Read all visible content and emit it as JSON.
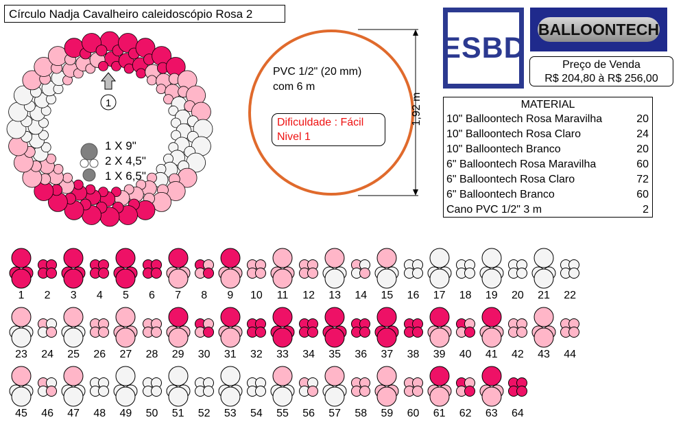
{
  "title": "Círculo Nadja Cavalheiro caleidoscópio Rosa 2",
  "logos": {
    "esbd": "ESBD",
    "balloontech": "BALLOONTECH"
  },
  "price": {
    "label": "Preço de Venda",
    "value": "R$ 204,80 à R$ 256,00"
  },
  "pvc_note": [
    "PVC 1/2\" (20 mm)",
    "com 6 m"
  ],
  "difficulty": [
    "Dificuldade : Fácil",
    "Nivel 1"
  ],
  "dimension": "1,92 m",
  "start_marker": "1",
  "cluster_sizes": [
    "1 X 9\"",
    "2 X 4,5\"",
    "1 X 6,5\""
  ],
  "material": {
    "title": "MATERIAL",
    "rows": [
      {
        "item": "10\" Balloontech Rosa Maravilha",
        "qty": "20"
      },
      {
        "item": "10\" Balloontech Rosa Claro",
        "qty": "24"
      },
      {
        "item": "10\" Balloontech Branco",
        "qty": "20"
      },
      {
        "item": "6\" Balloontech Rosa Maravilha",
        "qty": "60"
      },
      {
        "item": "6\" Balloontech Rosa Claro",
        "qty": "72"
      },
      {
        "item": "6\" Balloontech Branco",
        "qty": "60"
      },
      {
        "item": "Cano PVC 1/2\" 3 m",
        "qty": "2"
      }
    ]
  },
  "colors": {
    "M": "#ee1166",
    "P": "#ffb6c8",
    "W": "#f4f4f4",
    "frame": "#e06a2c",
    "esbd": "#2b3990"
  },
  "clusters": [
    {
      "n": "1",
      "type": "big",
      "top": "M",
      "bottom": "M"
    },
    {
      "n": "2",
      "type": "small",
      "c": [
        "M",
        "M",
        "M",
        "M"
      ]
    },
    {
      "n": "3",
      "type": "big",
      "top": "M",
      "bottom": "M"
    },
    {
      "n": "4",
      "type": "small",
      "c": [
        "M",
        "M",
        "M",
        "M"
      ]
    },
    {
      "n": "5",
      "type": "big",
      "top": "M",
      "bottom": "M"
    },
    {
      "n": "6",
      "type": "small",
      "c": [
        "M",
        "M",
        "M",
        "M"
      ]
    },
    {
      "n": "7",
      "type": "big",
      "top": "M",
      "bottom": "P"
    },
    {
      "n": "8",
      "type": "small",
      "c": [
        "M",
        "P",
        "P",
        "M"
      ]
    },
    {
      "n": "9",
      "type": "big",
      "top": "M",
      "bottom": "P"
    },
    {
      "n": "10",
      "type": "small",
      "c": [
        "P",
        "P",
        "P",
        "P"
      ]
    },
    {
      "n": "11",
      "type": "big",
      "top": "P",
      "bottom": "P"
    },
    {
      "n": "12",
      "type": "small",
      "c": [
        "P",
        "P",
        "P",
        "P"
      ]
    },
    {
      "n": "13",
      "type": "big",
      "top": "P",
      "bottom": "W"
    },
    {
      "n": "14",
      "type": "small",
      "c": [
        "P",
        "W",
        "W",
        "P"
      ]
    },
    {
      "n": "15",
      "type": "big",
      "top": "P",
      "bottom": "W"
    },
    {
      "n": "16",
      "type": "small",
      "c": [
        "W",
        "W",
        "W",
        "W"
      ]
    },
    {
      "n": "17",
      "type": "big",
      "top": "W",
      "bottom": "W"
    },
    {
      "n": "18",
      "type": "small",
      "c": [
        "W",
        "W",
        "W",
        "W"
      ]
    },
    {
      "n": "19",
      "type": "big",
      "top": "W",
      "bottom": "W"
    },
    {
      "n": "20",
      "type": "small",
      "c": [
        "W",
        "W",
        "W",
        "W"
      ]
    },
    {
      "n": "21",
      "type": "big",
      "top": "W",
      "bottom": "W"
    },
    {
      "n": "22",
      "type": "small",
      "c": [
        "W",
        "W",
        "W",
        "W"
      ]
    },
    {
      "n": "23",
      "type": "big",
      "top": "P",
      "bottom": "W"
    },
    {
      "n": "24",
      "type": "small",
      "c": [
        "P",
        "W",
        "W",
        "P"
      ]
    },
    {
      "n": "25",
      "type": "big",
      "top": "P",
      "bottom": "W"
    },
    {
      "n": "26",
      "type": "small",
      "c": [
        "P",
        "P",
        "P",
        "P"
      ]
    },
    {
      "n": "27",
      "type": "big",
      "top": "P",
      "bottom": "P"
    },
    {
      "n": "28",
      "type": "small",
      "c": [
        "P",
        "P",
        "P",
        "P"
      ]
    },
    {
      "n": "29",
      "type": "big",
      "top": "M",
      "bottom": "P"
    },
    {
      "n": "30",
      "type": "small",
      "c": [
        "M",
        "P",
        "P",
        "M"
      ]
    },
    {
      "n": "31",
      "type": "big",
      "top": "M",
      "bottom": "P"
    },
    {
      "n": "32",
      "type": "small",
      "c": [
        "M",
        "M",
        "M",
        "M"
      ]
    },
    {
      "n": "33",
      "type": "big",
      "top": "M",
      "bottom": "M"
    },
    {
      "n": "34",
      "type": "small",
      "c": [
        "M",
        "M",
        "M",
        "M"
      ]
    },
    {
      "n": "35",
      "type": "big",
      "top": "M",
      "bottom": "M"
    },
    {
      "n": "36",
      "type": "small",
      "c": [
        "M",
        "M",
        "M",
        "M"
      ]
    },
    {
      "n": "37",
      "type": "big",
      "top": "M",
      "bottom": "M"
    },
    {
      "n": "38",
      "type": "small",
      "c": [
        "M",
        "M",
        "M",
        "M"
      ]
    },
    {
      "n": "39",
      "type": "big",
      "top": "M",
      "bottom": "P"
    },
    {
      "n": "40",
      "type": "small",
      "c": [
        "M",
        "P",
        "P",
        "M"
      ]
    },
    {
      "n": "41",
      "type": "big",
      "top": "M",
      "bottom": "P"
    },
    {
      "n": "42",
      "type": "small",
      "c": [
        "P",
        "P",
        "P",
        "P"
      ]
    },
    {
      "n": "43",
      "type": "big",
      "top": "P",
      "bottom": "P"
    },
    {
      "n": "44",
      "type": "small",
      "c": [
        "P",
        "P",
        "P",
        "P"
      ]
    },
    {
      "n": "45",
      "type": "big",
      "top": "P",
      "bottom": "W"
    },
    {
      "n": "46",
      "type": "small",
      "c": [
        "P",
        "W",
        "W",
        "P"
      ]
    },
    {
      "n": "47",
      "type": "big",
      "top": "P",
      "bottom": "W"
    },
    {
      "n": "48",
      "type": "small",
      "c": [
        "W",
        "W",
        "W",
        "W"
      ]
    },
    {
      "n": "49",
      "type": "big",
      "top": "W",
      "bottom": "W"
    },
    {
      "n": "50",
      "type": "small",
      "c": [
        "W",
        "W",
        "W",
        "W"
      ]
    },
    {
      "n": "51",
      "type": "big",
      "top": "W",
      "bottom": "W"
    },
    {
      "n": "52",
      "type": "small",
      "c": [
        "W",
        "W",
        "W",
        "W"
      ]
    },
    {
      "n": "53",
      "type": "big",
      "top": "W",
      "bottom": "W"
    },
    {
      "n": "54",
      "type": "small",
      "c": [
        "W",
        "W",
        "W",
        "W"
      ]
    },
    {
      "n": "55",
      "type": "big",
      "top": "P",
      "bottom": "W"
    },
    {
      "n": "56",
      "type": "small",
      "c": [
        "P",
        "W",
        "W",
        "P"
      ]
    },
    {
      "n": "57",
      "type": "big",
      "top": "P",
      "bottom": "W"
    },
    {
      "n": "58",
      "type": "small",
      "c": [
        "P",
        "P",
        "P",
        "P"
      ]
    },
    {
      "n": "59",
      "type": "big",
      "top": "P",
      "bottom": "P"
    },
    {
      "n": "60",
      "type": "small",
      "c": [
        "P",
        "P",
        "P",
        "P"
      ]
    },
    {
      "n": "61",
      "type": "big",
      "top": "M",
      "bottom": "P"
    },
    {
      "n": "62",
      "type": "small",
      "c": [
        "M",
        "P",
        "P",
        "M"
      ]
    },
    {
      "n": "63",
      "type": "big",
      "top": "M",
      "bottom": "P"
    },
    {
      "n": "64",
      "type": "small",
      "c": [
        "M",
        "M",
        "M",
        "M"
      ]
    }
  ]
}
